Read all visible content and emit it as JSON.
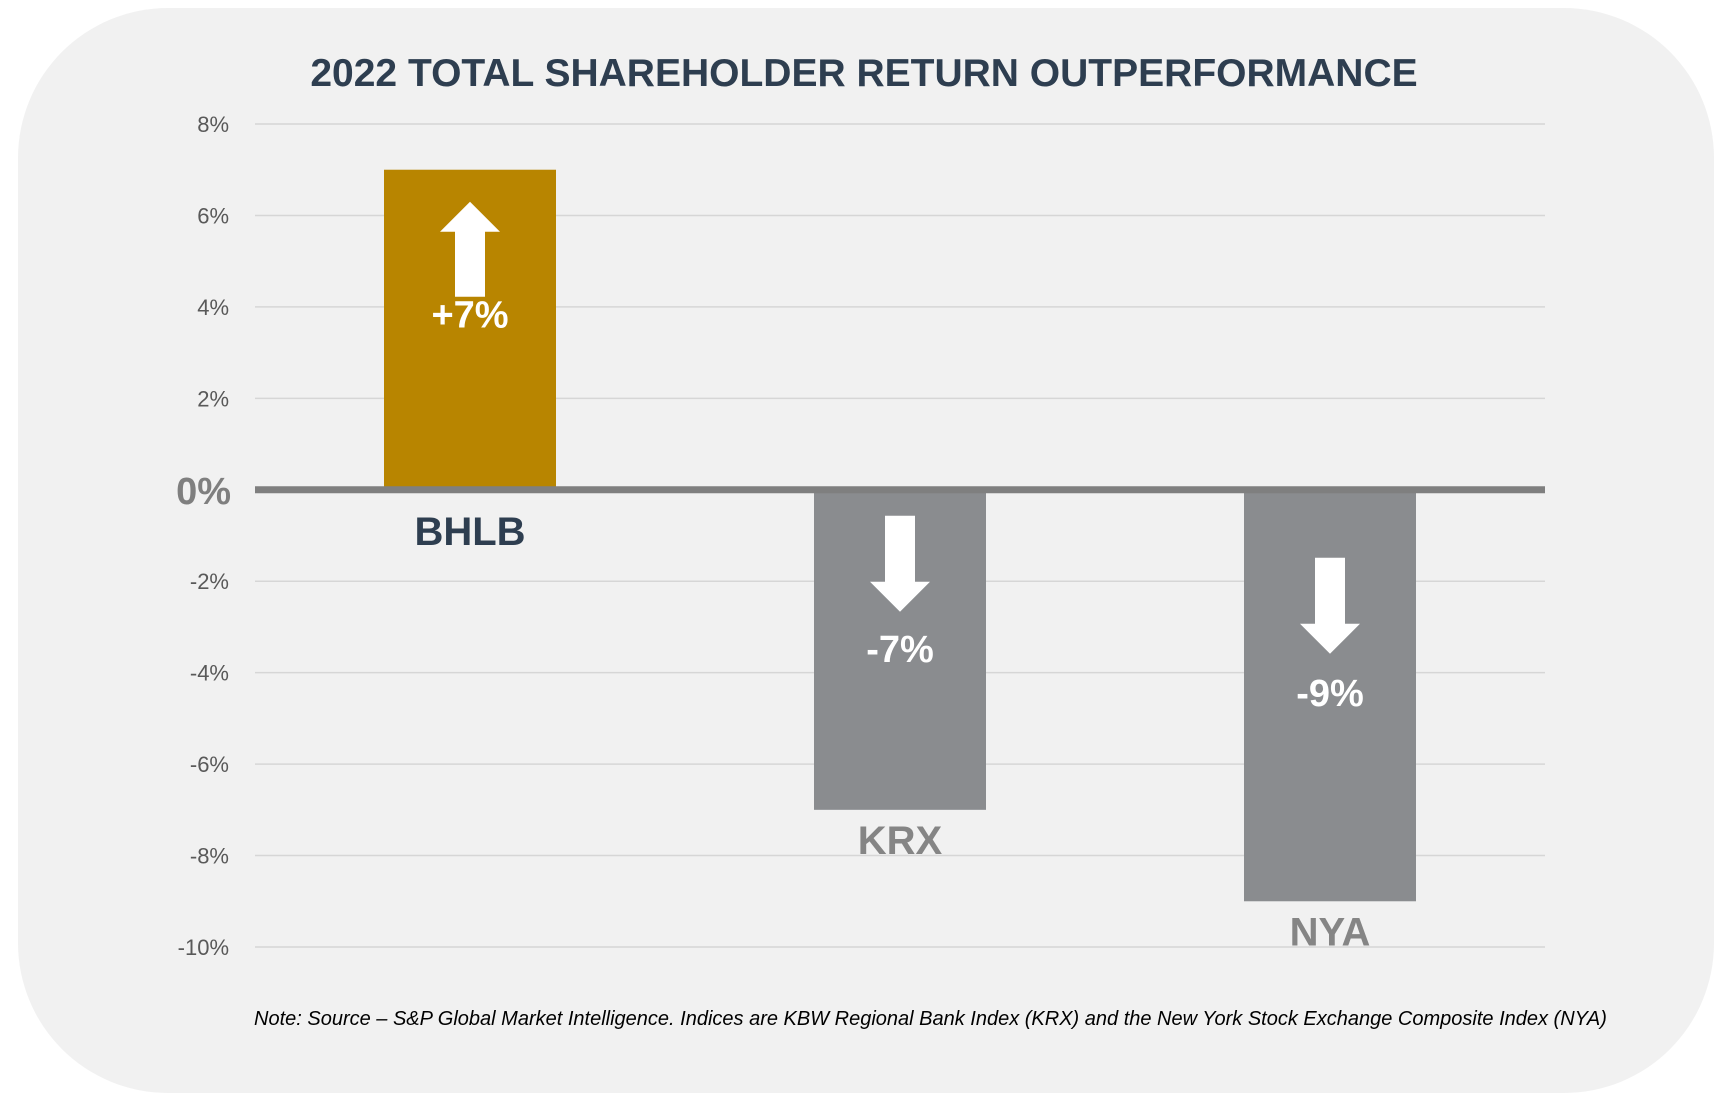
{
  "chart_data": {
    "type": "bar",
    "title": "2022 TOTAL SHAREHOLDER RETURN OUTPERFORMANCE",
    "categories": [
      "BHLB",
      "KRX",
      "NYA"
    ],
    "values": [
      7,
      -7,
      -9
    ],
    "value_labels": [
      "+7%",
      "-7%",
      "-9%"
    ],
    "bar_colors": [
      "#b88500",
      "#8a8c8f",
      "#8a8c8f"
    ],
    "category_label_colors": [
      "#2e3e50",
      "#858585",
      "#858585"
    ],
    "arrow_directions": [
      "up",
      "down",
      "down"
    ],
    "ylim": [
      -10,
      8
    ],
    "yticks": [
      8,
      6,
      4,
      2,
      0,
      -2,
      -4,
      -6,
      -8,
      -10
    ],
    "ytick_labels": [
      "8%",
      "6%",
      "4%",
      "2%",
      "0%",
      "-2%",
      "-4%",
      "-6%",
      "-8%",
      "-10%"
    ],
    "xlabel": "",
    "ylabel": "",
    "grid": true,
    "legend": "none"
  },
  "note": "Note: Source – S&P Global Market Intelligence. Indices are KBW Regional Bank Index (KRX) and the New York Stock Exchange Composite Index (NYA)",
  "colors": {
    "background": "#f1f1f1",
    "gridline": "#d6d6d6",
    "zero_line": "#7f7f7f",
    "title": "#2e3e50"
  }
}
